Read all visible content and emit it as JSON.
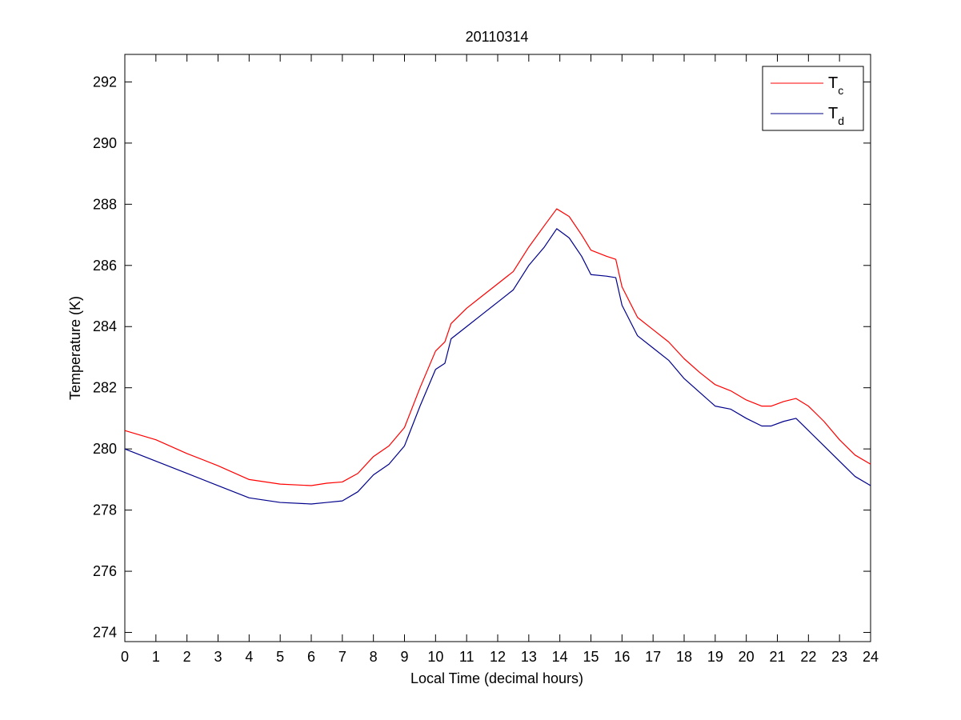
{
  "chart_data": {
    "type": "line",
    "title": "20110314",
    "xlabel": "Local Time (decimal hours)",
    "ylabel": "Temperature (K)",
    "xlim": [
      0,
      24
    ],
    "ylim": [
      273.7,
      292.9
    ],
    "x_ticks": [
      0,
      1,
      2,
      3,
      4,
      5,
      6,
      7,
      8,
      9,
      10,
      11,
      12,
      13,
      14,
      15,
      16,
      17,
      18,
      19,
      20,
      21,
      22,
      23,
      24
    ],
    "y_ticks": [
      274,
      276,
      278,
      280,
      282,
      284,
      286,
      288,
      290,
      292
    ],
    "grid": false,
    "legend_position": "top-right",
    "series": [
      {
        "name": "Tc",
        "legend_main": "T",
        "legend_sub": "c",
        "color": "#ff0000",
        "points": [
          [
            0,
            280.6
          ],
          [
            1,
            280.3
          ],
          [
            2,
            279.85
          ],
          [
            3,
            279.45
          ],
          [
            4,
            279.0
          ],
          [
            5,
            278.85
          ],
          [
            6,
            278.8
          ],
          [
            6.5,
            278.88
          ],
          [
            7,
            278.92
          ],
          [
            7.5,
            279.2
          ],
          [
            8,
            279.75
          ],
          [
            8.5,
            280.1
          ],
          [
            9,
            280.7
          ],
          [
            9.5,
            282.0
          ],
          [
            10,
            283.2
          ],
          [
            10.3,
            283.5
          ],
          [
            10.5,
            284.1
          ],
          [
            11,
            284.6
          ],
          [
            11.5,
            285.0
          ],
          [
            12,
            285.4
          ],
          [
            12.5,
            285.8
          ],
          [
            13,
            286.6
          ],
          [
            13.5,
            287.3
          ],
          [
            13.9,
            287.85
          ],
          [
            14.3,
            287.6
          ],
          [
            14.7,
            287.0
          ],
          [
            15,
            286.5
          ],
          [
            15.5,
            286.3
          ],
          [
            15.8,
            286.2
          ],
          [
            16,
            285.3
          ],
          [
            16.5,
            284.3
          ],
          [
            17,
            283.9
          ],
          [
            17.5,
            283.5
          ],
          [
            18,
            282.95
          ],
          [
            18.5,
            282.5
          ],
          [
            19,
            282.1
          ],
          [
            19.5,
            281.9
          ],
          [
            20,
            281.6
          ],
          [
            20.5,
            281.4
          ],
          [
            20.8,
            281.4
          ],
          [
            21.2,
            281.55
          ],
          [
            21.6,
            281.65
          ],
          [
            22,
            281.4
          ],
          [
            22.5,
            280.9
          ],
          [
            23,
            280.3
          ],
          [
            23.5,
            279.8
          ],
          [
            24,
            279.5
          ]
        ]
      },
      {
        "name": "Td",
        "legend_main": "T",
        "legend_sub": "d",
        "color": "#00008b",
        "points": [
          [
            0,
            280.0
          ],
          [
            1,
            279.6
          ],
          [
            2,
            279.2
          ],
          [
            3,
            278.8
          ],
          [
            4,
            278.4
          ],
          [
            5,
            278.25
          ],
          [
            6,
            278.2
          ],
          [
            6.5,
            278.25
          ],
          [
            7,
            278.3
          ],
          [
            7.5,
            278.6
          ],
          [
            8,
            279.15
          ],
          [
            8.5,
            279.5
          ],
          [
            9,
            280.1
          ],
          [
            9.5,
            281.4
          ],
          [
            10,
            282.6
          ],
          [
            10.3,
            282.8
          ],
          [
            10.5,
            283.6
          ],
          [
            11,
            284.0
          ],
          [
            11.5,
            284.4
          ],
          [
            12,
            284.8
          ],
          [
            12.5,
            285.2
          ],
          [
            13,
            286.0
          ],
          [
            13.5,
            286.6
          ],
          [
            13.9,
            287.2
          ],
          [
            14.3,
            286.9
          ],
          [
            14.7,
            286.3
          ],
          [
            15,
            285.7
          ],
          [
            15.5,
            285.65
          ],
          [
            15.8,
            285.6
          ],
          [
            16,
            284.7
          ],
          [
            16.5,
            283.7
          ],
          [
            17,
            283.3
          ],
          [
            17.5,
            282.9
          ],
          [
            18,
            282.3
          ],
          [
            18.5,
            281.85
          ],
          [
            19,
            281.4
          ],
          [
            19.5,
            281.3
          ],
          [
            20,
            281.0
          ],
          [
            20.5,
            280.75
          ],
          [
            20.8,
            280.75
          ],
          [
            21.2,
            280.9
          ],
          [
            21.6,
            281.0
          ],
          [
            22,
            280.6
          ],
          [
            22.5,
            280.1
          ],
          [
            23,
            279.6
          ],
          [
            23.5,
            279.1
          ],
          [
            24,
            278.8
          ]
        ]
      }
    ]
  }
}
